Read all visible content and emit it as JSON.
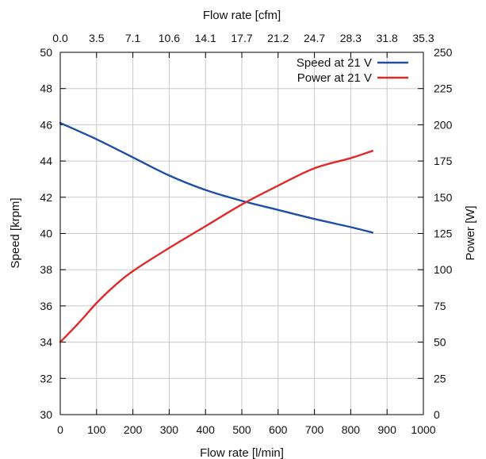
{
  "chart_data": {
    "type": "line",
    "x_bottom": {
      "label": "Flow rate [l/min]",
      "range": [
        0,
        1000
      ],
      "ticks": [
        "0",
        "100",
        "200",
        "300",
        "400",
        "500",
        "600",
        "700",
        "800",
        "900",
        "1000"
      ]
    },
    "x_top": {
      "label": "Flow rate [cfm]",
      "ticks": [
        "0.0",
        "3.5",
        "7.1",
        "10.6",
        "14.1",
        "17.7",
        "21.2",
        "24.7",
        "28.3",
        "31.8",
        "35.3"
      ]
    },
    "y_left": {
      "label": "Speed [krpm]",
      "range": [
        30,
        50
      ],
      "ticks": [
        "30",
        "32",
        "34",
        "36",
        "38",
        "40",
        "42",
        "44",
        "46",
        "48",
        "50"
      ]
    },
    "y_right": {
      "label": "Power [W]",
      "range": [
        0,
        250
      ],
      "ticks": [
        "0",
        "25",
        "50",
        "75",
        "100",
        "125",
        "150",
        "175",
        "200",
        "225",
        "250"
      ]
    },
    "grid": true,
    "legend_position": "top-right",
    "series": [
      {
        "name": "Speed at 21 V",
        "axis": "left",
        "color": "#1f4fa3",
        "x": [
          0,
          100,
          200,
          300,
          400,
          500,
          600,
          700,
          800,
          860
        ],
        "y": [
          46.1,
          45.2,
          44.2,
          43.2,
          42.4,
          41.8,
          41.3,
          40.8,
          40.35,
          40.05
        ]
      },
      {
        "name": "Power at 21 V",
        "axis": "right",
        "color": "#e02a2a",
        "x": [
          0,
          50,
          100,
          150,
          200,
          300,
          400,
          500,
          600,
          700,
          800,
          860
        ],
        "y": [
          50,
          63,
          77,
          89,
          99,
          115,
          130,
          145,
          158,
          170,
          177,
          182
        ]
      }
    ]
  }
}
